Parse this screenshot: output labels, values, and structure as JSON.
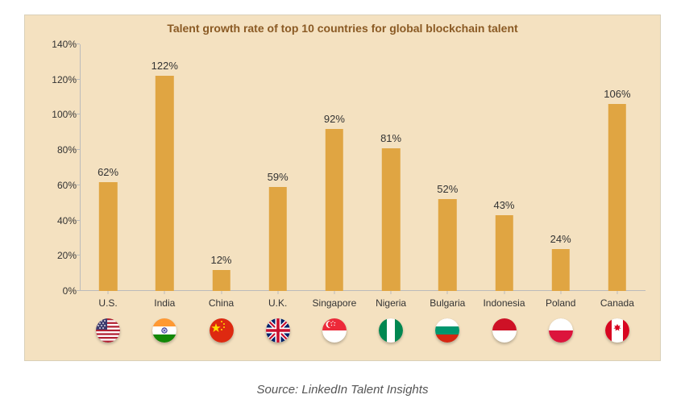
{
  "chart": {
    "type": "bar",
    "title": "Talent growth rate of top 10 countries for global blockchain talent",
    "title_fontsize": 14,
    "title_color": "#8a5a24",
    "background_color": "#f4e1c0",
    "bar_color": "#e0a542",
    "bar_width_pct": 3.2,
    "label_fontsize": 13,
    "axis_fontsize": 12,
    "ylim_max": 140,
    "ylim_min": 0,
    "ytick_step": 20,
    "y_suffix": "%",
    "categories": [
      "U.S.",
      "India",
      "China",
      "U.K.",
      "Singapore",
      "Nigeria",
      "Bulgaria",
      "Indonesia",
      "Poland",
      "Canada"
    ],
    "values": [
      62,
      122,
      12,
      59,
      92,
      81,
      52,
      43,
      24,
      106
    ],
    "value_labels": [
      "62%",
      "122%",
      "12%",
      "59%",
      "92%",
      "81%",
      "52%",
      "43%",
      "24%",
      "106%"
    ],
    "flags": [
      "us",
      "in",
      "cn",
      "uk",
      "sg",
      "ng",
      "bg",
      "id",
      "pl",
      "ca"
    ]
  },
  "source_line": "Source: LinkedIn Talent Insights"
}
